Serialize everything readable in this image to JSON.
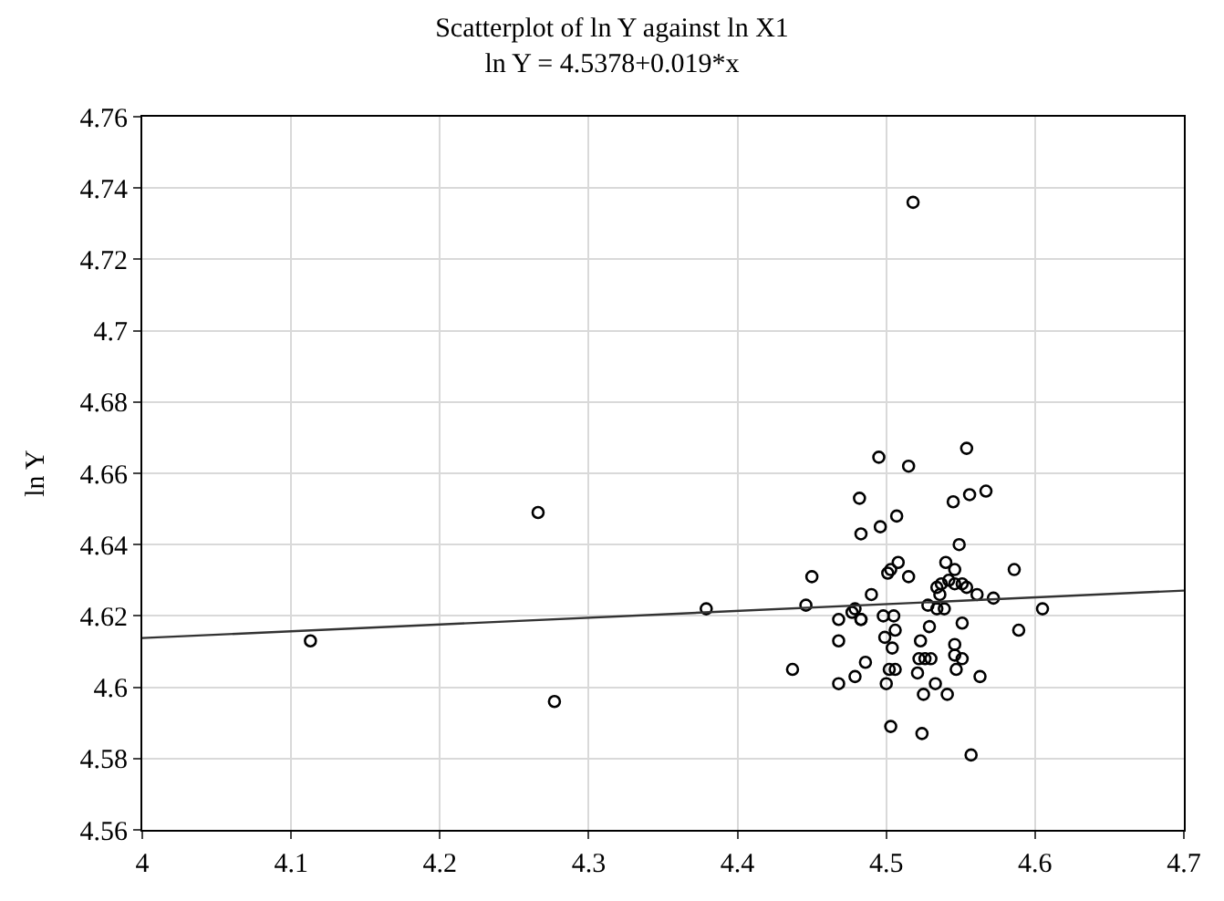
{
  "chart_data": {
    "type": "scatter",
    "title": "Scatterplot of ln Y against ln X1",
    "subtitle": "ln Y = 4.5378+0.019*x",
    "ylabel": "ln Y",
    "xlim": [
      4,
      4.7
    ],
    "ylim": [
      4.56,
      4.76
    ],
    "xticks": [
      4,
      4.1,
      4.2,
      4.3,
      4.4,
      4.5,
      4.6,
      4.7
    ],
    "yticks": [
      4.56,
      4.58,
      4.6,
      4.62,
      4.64,
      4.66,
      4.68,
      4.7,
      4.72,
      4.74,
      4.76
    ],
    "grid": true,
    "legend": false,
    "marker": "circle",
    "series": [
      {
        "color": "#000000",
        "x": [
          4.495,
          4.515,
          4.554,
          4.482,
          4.545,
          4.556,
          4.567,
          4.507,
          4.483,
          4.496,
          4.549,
          4.45,
          4.508,
          4.501,
          4.503,
          4.515,
          4.54,
          4.546,
          4.586,
          4.49,
          4.534,
          4.537,
          4.542,
          4.546,
          4.551,
          4.554,
          4.561,
          4.572,
          4.536,
          4.446,
          4.528,
          4.534,
          4.539,
          4.605,
          4.479,
          4.477,
          4.468,
          4.483,
          4.483,
          4.498,
          4.505,
          4.506,
          4.529,
          4.551,
          4.589,
          4.468,
          4.499,
          4.504,
          4.523,
          4.546,
          4.522,
          4.526,
          4.53,
          4.546,
          4.551,
          4.486,
          4.502,
          4.506,
          4.521,
          4.547,
          4.563,
          4.437,
          4.479,
          4.468,
          4.5,
          4.533,
          4.525,
          4.541,
          4.503,
          4.524,
          4.557,
          4.518,
          4.113,
          4.266,
          4.277,
          4.379
        ],
        "values": [
          4.6645,
          4.662,
          4.667,
          4.653,
          4.652,
          4.654,
          4.655,
          4.648,
          4.643,
          4.645,
          4.64,
          4.631,
          4.635,
          4.632,
          4.633,
          4.631,
          4.635,
          4.633,
          4.633,
          4.626,
          4.628,
          4.629,
          4.63,
          4.629,
          4.629,
          4.628,
          4.626,
          4.625,
          4.626,
          4.623,
          4.623,
          4.622,
          4.622,
          4.622,
          4.622,
          4.621,
          4.619,
          4.619,
          4.619,
          4.62,
          4.62,
          4.616,
          4.617,
          4.618,
          4.616,
          4.613,
          4.614,
          4.611,
          4.613,
          4.612,
          4.608,
          4.608,
          4.608,
          4.609,
          4.608,
          4.607,
          4.605,
          4.605,
          4.604,
          4.605,
          4.603,
          4.605,
          4.603,
          4.601,
          4.601,
          4.601,
          4.598,
          4.598,
          4.589,
          4.587,
          4.581,
          4.736,
          4.613,
          4.649,
          4.596,
          4.622
        ]
      },
      {
        "type": "line",
        "color": "#333333",
        "marker": "none",
        "line_style": "solid",
        "x": [
          4,
          4.7
        ],
        "values": [
          4.6138,
          4.6271
        ]
      }
    ]
  }
}
